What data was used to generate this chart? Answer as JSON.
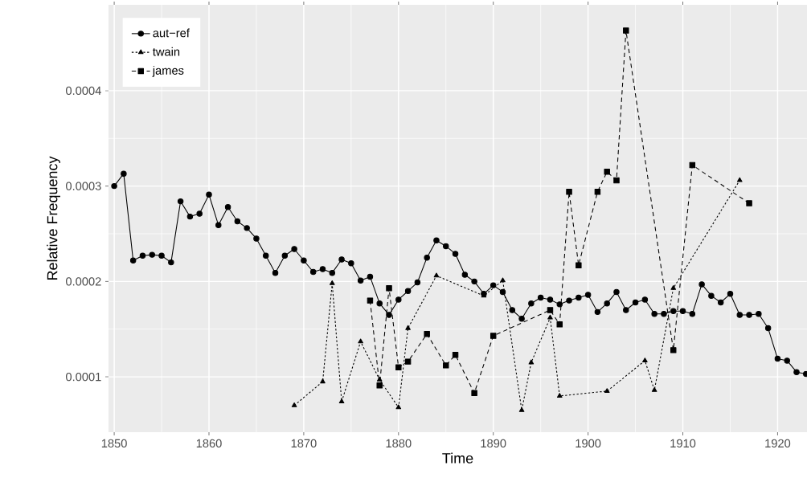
{
  "chart_data": {
    "type": "line",
    "xlabel": "Time",
    "ylabel": "Relative Frequency",
    "xlim": [
      1849.4,
      1923.1
    ],
    "xticks": [
      1850,
      1860,
      1870,
      1880,
      1890,
      1900,
      1910,
      1920
    ],
    "ylim": [
      4.2e-05,
      0.00049
    ],
    "yticks": [
      0.0001,
      0.0002,
      0.0003,
      0.0004
    ],
    "grid": true,
    "legend": "top left",
    "series": [
      {
        "name": "aut−ref",
        "color": "#000000",
        "marker": "circle",
        "line_style": "solid",
        "x": [
          1850,
          1851,
          1852,
          1853,
          1854,
          1855,
          1856,
          1857,
          1858,
          1859,
          1860,
          1861,
          1862,
          1863,
          1864,
          1865,
          1866,
          1867,
          1868,
          1869,
          1870,
          1871,
          1872,
          1873,
          1874,
          1875,
          1876,
          1877,
          1878,
          1879,
          1880,
          1881,
          1882,
          1883,
          1884,
          1885,
          1886,
          1887,
          1888,
          1889,
          1890,
          1891,
          1892,
          1893,
          1894,
          1895,
          1896,
          1897,
          1898,
          1899,
          1900,
          1901,
          1902,
          1903,
          1904,
          1905,
          1906,
          1907,
          1908,
          1909,
          1910,
          1911,
          1912,
          1913,
          1914,
          1915,
          1916,
          1917,
          1918,
          1919,
          1920,
          1921,
          1922,
          1923
        ],
        "values": [
          0.0003,
          0.000313,
          0.000222,
          0.000227,
          0.000228,
          0.000227,
          0.00022,
          0.000284,
          0.000268,
          0.000271,
          0.000291,
          0.000259,
          0.000278,
          0.000263,
          0.000256,
          0.000245,
          0.000227,
          0.000209,
          0.000227,
          0.000234,
          0.000222,
          0.00021,
          0.000213,
          0.000209,
          0.000223,
          0.000219,
          0.000201,
          0.000205,
          0.000177,
          0.000165,
          0.000181,
          0.00019,
          0.000199,
          0.000225,
          0.000243,
          0.000237,
          0.000229,
          0.000207,
          0.0002,
          0.000187,
          0.000196,
          0.000189,
          0.00017,
          0.000161,
          0.000177,
          0.000183,
          0.000181,
          0.000176,
          0.00018,
          0.000183,
          0.000186,
          0.000168,
          0.000177,
          0.000189,
          0.00017,
          0.000178,
          0.000181,
          0.000166,
          0.000166,
          0.000169,
          0.000169,
          0.000166,
          0.000197,
          0.000185,
          0.000178,
          0.000187,
          0.000165,
          0.000165,
          0.000166,
          0.000151,
          0.000119,
          0.000117,
          0.000105,
          0.000103
        ]
      },
      {
        "name": "twain",
        "color": "#000000",
        "marker": "triangle",
        "line_style": "dotted",
        "x": [
          1869,
          1872,
          1873,
          1874,
          1876,
          1878,
          1880,
          1881,
          1884,
          1889,
          1891,
          1893,
          1894,
          1896,
          1897,
          1902,
          1906,
          1907,
          1909,
          1916
        ],
        "values": [
          7e-05,
          9.5e-05,
          0.000198,
          7.4e-05,
          0.000137,
          9.7e-05,
          6.8e-05,
          0.000151,
          0.000206,
          0.000185,
          0.000201,
          6.5e-05,
          0.000115,
          0.000162,
          8e-05,
          8.5e-05,
          0.000117,
          8.6e-05,
          0.000193,
          0.000306
        ]
      },
      {
        "name": "james",
        "color": "#000000",
        "marker": "square",
        "line_style": "dashed",
        "x": [
          1877,
          1878,
          1879,
          1880,
          1881,
          1883,
          1885,
          1886,
          1888,
          1890,
          1896,
          1897,
          1898,
          1899,
          1901,
          1902,
          1903,
          1904,
          1909,
          1911,
          1917
        ],
        "values": [
          0.00018,
          9.1e-05,
          0.000193,
          0.00011,
          0.000116,
          0.000145,
          0.000112,
          0.000123,
          8.3e-05,
          0.000143,
          0.00017,
          0.000155,
          0.000294,
          0.000217,
          0.000294,
          0.000315,
          0.000306,
          0.000463,
          0.000128,
          0.000322,
          0.000282
        ]
      }
    ]
  }
}
